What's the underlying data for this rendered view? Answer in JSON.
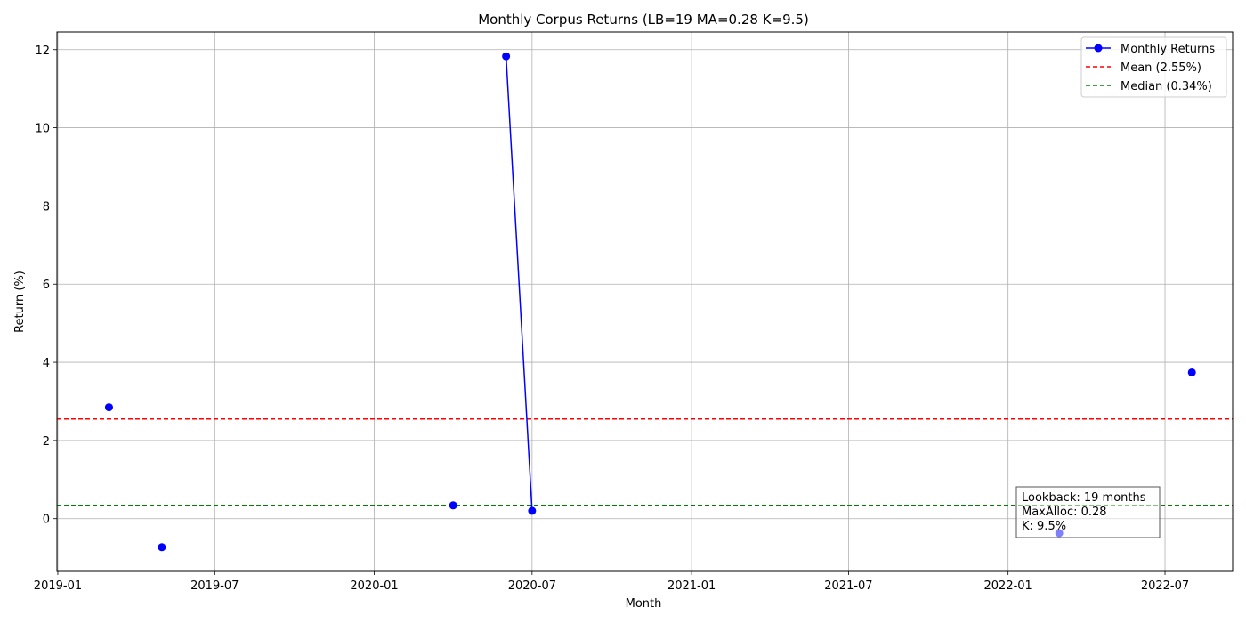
{
  "chart_data": {
    "type": "line",
    "title": "Monthly Corpus Returns (LB=19 MA=0.28 K=9.5)",
    "xlabel": "Month",
    "ylabel": "Return (%)",
    "x_tick_labels": [
      "2019-01",
      "2019-07",
      "2020-01",
      "2020-07",
      "2021-01",
      "2021-07",
      "2022-01",
      "2022-07"
    ],
    "x_tick_dates": [
      "2019-01-01",
      "2019-07-01",
      "2020-01-01",
      "2020-07-01",
      "2021-01-01",
      "2021-07-01",
      "2022-01-01",
      "2022-07-01"
    ],
    "xlim": [
      "2018-12-31",
      "2022-09-17"
    ],
    "y_ticks": [
      0,
      2,
      4,
      6,
      8,
      10,
      12
    ],
    "ylim": [
      -1.35,
      12.45
    ],
    "grid": true,
    "series": [
      {
        "name": "Monthly Returns",
        "color": "#0000ff",
        "marker": "circle",
        "x": [
          "2019-03-01",
          "2019-05-01",
          "2020-04-01",
          "2020-06-01",
          "2020-07-01",
          "2022-03-01",
          "2022-08-01"
        ],
        "y": [
          2.85,
          -0.73,
          0.34,
          11.83,
          0.2,
          -0.37,
          3.74
        ]
      }
    ],
    "reference_lines": [
      {
        "name": "Mean (2.55%)",
        "value": 2.55,
        "color": "#ff0000",
        "style": "dashed"
      },
      {
        "name": "Median (0.34%)",
        "value": 0.34,
        "color": "#008000",
        "style": "dashed"
      }
    ],
    "legend": {
      "placement": "top-right",
      "entries": [
        "Monthly Returns",
        "Mean (2.55%)",
        "Median (0.34%)"
      ]
    },
    "annotation": {
      "lines": [
        "Lookback: 19 months",
        "MaxAlloc: 0.28",
        "K: 9.5%"
      ]
    }
  }
}
